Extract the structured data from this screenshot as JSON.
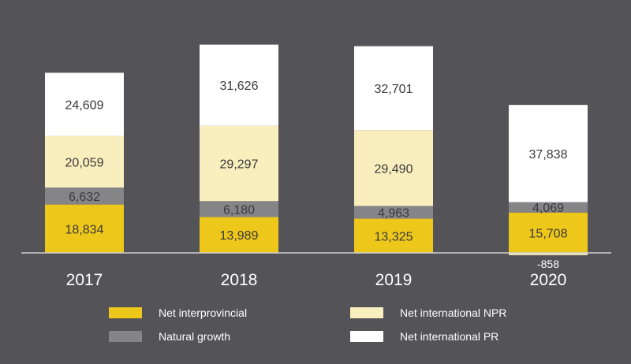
{
  "chart_data": {
    "type": "bar",
    "stacked": true,
    "categories": [
      "2017",
      "2018",
      "2019",
      "2020"
    ],
    "series": [
      {
        "name": "Net interprovincial",
        "color": "#eec71b",
        "values": [
          18834,
          13989,
          13325,
          15708
        ]
      },
      {
        "name": "Natural growth",
        "color": "#858487",
        "values": [
          6632,
          6180,
          4963,
          4069
        ]
      },
      {
        "name": "Net international NPR",
        "color": "#f9eebe",
        "values": [
          20059,
          29297,
          29490,
          -858
        ]
      },
      {
        "name": "Net international PR",
        "color": "#ffffff",
        "values": [
          24609,
          31626,
          32701,
          37838
        ]
      }
    ],
    "data_labels": [
      [
        "18,834",
        "13,989",
        "13,325",
        "15,708"
      ],
      [
        "6,632",
        "6,180",
        "4,963",
        "4,069"
      ],
      [
        "20,059",
        "29,297",
        "29,490",
        "-858"
      ],
      [
        "24,609",
        "31,626",
        "32,701",
        "37,838"
      ]
    ],
    "legend_placement": "bottom",
    "ylim": [
      -1000,
      95000
    ],
    "title": "",
    "xlabel": "",
    "ylabel": "",
    "grid": false
  }
}
